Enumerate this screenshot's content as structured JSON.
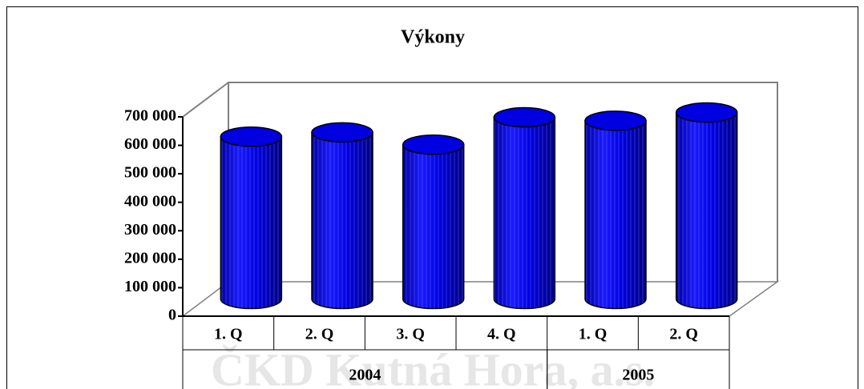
{
  "chart_data": {
    "type": "bar",
    "title": "Výkony",
    "watermark": "ČKD Kutná Hora, a.s.",
    "categories": [
      "1. Q",
      "2. Q",
      "3. Q",
      "4. Q",
      "1. Q",
      "2. Q"
    ],
    "groups": [
      {
        "label": "2004",
        "span": 4
      },
      {
        "label": "2005",
        "span": 2
      }
    ],
    "values": [
      570000,
      585000,
      542000,
      638000,
      626000,
      655000
    ],
    "color": "#0000e0",
    "ylim": [
      0,
      700000
    ],
    "yticks": [
      0,
      {
        "value": 100000,
        "label": "100 000"
      },
      {
        "value": 200000,
        "label": "200 000"
      },
      {
        "value": 300000,
        "label": "300 000"
      },
      {
        "value": 400000,
        "label": "400 000"
      },
      {
        "value": 500000,
        "label": "500 000"
      },
      {
        "value": 600000,
        "label": "600 000"
      },
      {
        "value": 700000,
        "label": "700 000"
      }
    ]
  }
}
